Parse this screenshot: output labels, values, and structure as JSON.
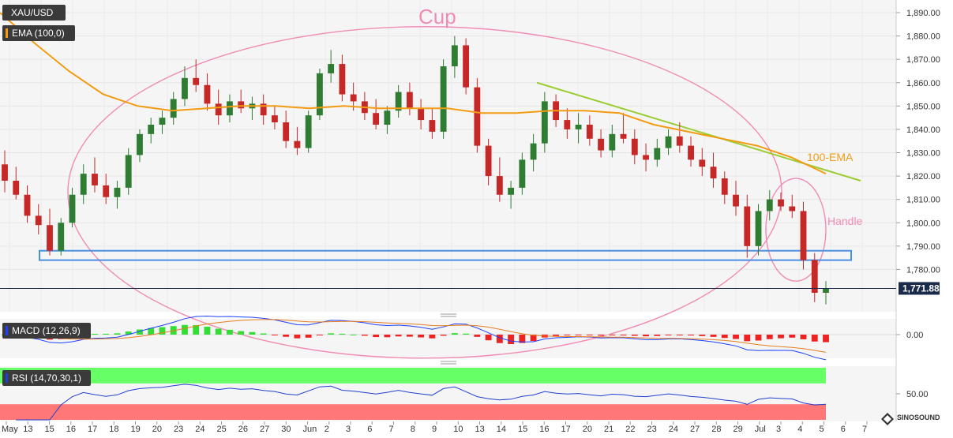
{
  "chart_data": {
    "type": "candlestick",
    "symbol": "XAU/USD",
    "indicators": {
      "ema_label": "EMA (100,0)",
      "macd_label": "MACD (12,26,9)",
      "rsi_label": "RSI (14,70,30,1)"
    },
    "price_axis": {
      "ylim": [
        1762,
        1893
      ],
      "ticks": [
        "1,890.00",
        "1,880.00",
        "1,870.00",
        "1,860.00",
        "1,850.00",
        "1,840.00",
        "1,830.00",
        "1,820.00",
        "1,810.00",
        "1,800.00",
        "1,790.00",
        "1,780.00"
      ],
      "tick_values": [
        1890,
        1880,
        1870,
        1860,
        1850,
        1840,
        1830,
        1820,
        1810,
        1800,
        1790,
        1780
      ]
    },
    "current_price": {
      "value": 1771.88,
      "label": "1,771.88"
    },
    "date_labels": [
      "May",
      "13",
      "15",
      "16",
      "17",
      "18",
      "19",
      "20",
      "23",
      "24",
      "25",
      "26",
      "27",
      "30",
      "Jun",
      "2",
      "3",
      "6",
      "7",
      "8",
      "9",
      "10",
      "13",
      "14",
      "15",
      "16",
      "17",
      "20",
      "21",
      "22",
      "23",
      "24",
      "27",
      "28",
      "29",
      "Jul",
      "3",
      "4",
      "5",
      "6",
      "7"
    ],
    "ohlc": [
      [
        1825,
        1831,
        1813,
        1818
      ],
      [
        1818,
        1824,
        1810,
        1812
      ],
      [
        1812,
        1816,
        1800,
        1803
      ],
      [
        1803,
        1808,
        1795,
        1799
      ],
      [
        1799,
        1806,
        1786,
        1788
      ],
      [
        1788,
        1802,
        1786,
        1800
      ],
      [
        1800,
        1815,
        1798,
        1812
      ],
      [
        1812,
        1825,
        1808,
        1821
      ],
      [
        1821,
        1828,
        1813,
        1816
      ],
      [
        1816,
        1821,
        1808,
        1811
      ],
      [
        1811,
        1818,
        1806,
        1815
      ],
      [
        1815,
        1832,
        1812,
        1829
      ],
      [
        1829,
        1840,
        1826,
        1838
      ],
      [
        1838,
        1845,
        1834,
        1842
      ],
      [
        1842,
        1848,
        1838,
        1845
      ],
      [
        1845,
        1856,
        1842,
        1853
      ],
      [
        1853,
        1867,
        1850,
        1862
      ],
      [
        1862,
        1870,
        1856,
        1859
      ],
      [
        1859,
        1864,
        1848,
        1851
      ],
      [
        1851,
        1857,
        1842,
        1846
      ],
      [
        1846,
        1855,
        1843,
        1852
      ],
      [
        1852,
        1857,
        1847,
        1849
      ],
      [
        1849,
        1854,
        1844,
        1851
      ],
      [
        1851,
        1855,
        1842,
        1846
      ],
      [
        1846,
        1850,
        1840,
        1843
      ],
      [
        1843,
        1848,
        1832,
        1835
      ],
      [
        1835,
        1841,
        1829,
        1832
      ],
      [
        1832,
        1848,
        1830,
        1846
      ],
      [
        1846,
        1866,
        1844,
        1864
      ],
      [
        1864,
        1874,
        1860,
        1868
      ],
      [
        1868,
        1872,
        1852,
        1855
      ],
      [
        1855,
        1860,
        1848,
        1852
      ],
      [
        1852,
        1856,
        1844,
        1847
      ],
      [
        1847,
        1853,
        1840,
        1842
      ],
      [
        1842,
        1850,
        1838,
        1848
      ],
      [
        1848,
        1859,
        1845,
        1856
      ],
      [
        1856,
        1860,
        1846,
        1849
      ],
      [
        1849,
        1853,
        1840,
        1844
      ],
      [
        1844,
        1849,
        1836,
        1839
      ],
      [
        1839,
        1870,
        1836,
        1867
      ],
      [
        1867,
        1880,
        1862,
        1876
      ],
      [
        1876,
        1879,
        1855,
        1858
      ],
      [
        1858,
        1862,
        1830,
        1833
      ],
      [
        1833,
        1836,
        1816,
        1820
      ],
      [
        1820,
        1828,
        1809,
        1812
      ],
      [
        1812,
        1818,
        1806,
        1815
      ],
      [
        1815,
        1830,
        1812,
        1827
      ],
      [
        1827,
        1838,
        1822,
        1834
      ],
      [
        1834,
        1856,
        1830,
        1852
      ],
      [
        1852,
        1855,
        1841,
        1844
      ],
      [
        1844,
        1849,
        1836,
        1840
      ],
      [
        1840,
        1847,
        1834,
        1842
      ],
      [
        1842,
        1846,
        1833,
        1836
      ],
      [
        1836,
        1840,
        1828,
        1831
      ],
      [
        1831,
        1842,
        1828,
        1838
      ],
      [
        1838,
        1847,
        1834,
        1836
      ],
      [
        1836,
        1840,
        1825,
        1829
      ],
      [
        1829,
        1834,
        1822,
        1827
      ],
      [
        1827,
        1836,
        1824,
        1832
      ],
      [
        1832,
        1840,
        1829,
        1837
      ],
      [
        1837,
        1843,
        1830,
        1833
      ],
      [
        1833,
        1837,
        1824,
        1827
      ],
      [
        1827,
        1832,
        1820,
        1824
      ],
      [
        1824,
        1830,
        1815,
        1819
      ],
      [
        1819,
        1822,
        1808,
        1812
      ],
      [
        1812,
        1818,
        1803,
        1807
      ],
      [
        1807,
        1812,
        1785,
        1790
      ],
      [
        1790,
        1808,
        1786,
        1805
      ],
      [
        1805,
        1814,
        1801,
        1810
      ],
      [
        1810,
        1813,
        1805,
        1807
      ],
      [
        1807,
        1812,
        1802,
        1805
      ],
      [
        1805,
        1809,
        1780,
        1784
      ],
      [
        1784,
        1787,
        1766,
        1770
      ],
      [
        1770,
        1775,
        1765,
        1772
      ]
    ],
    "ema100": [
      1890,
      1877,
      1865,
      1855,
      1850,
      1848,
      1849,
      1850,
      1850,
      1849,
      1850,
      1849,
      1849,
      1849,
      1847,
      1847,
      1848,
      1848,
      1847,
      1842,
      1839,
      1836,
      1833,
      1828,
      1821
    ],
    "annotations": {
      "cup_label": "Cup",
      "handle_label": "Handle",
      "ema_label": "100-EMA"
    },
    "trendline": {
      "from": [
        0,
        1860
      ],
      "to": [
        1,
        1818
      ]
    },
    "support_zone": {
      "low": 1785,
      "high": 1787
    },
    "macd_panel": {
      "ticks": [
        "0.00"
      ]
    },
    "rsi_panel": {
      "ticks": [
        "50.00"
      ]
    },
    "colors": {
      "bull": "#2e7d32",
      "bear": "#c62828",
      "ema": "#f39c12",
      "trend": "#9acd32",
      "cup": "#f08cb4",
      "zone": "#4a90e2",
      "macd": "#1e40ff",
      "signal": "#e67e22",
      "rsi": "#2040d0",
      "rsi_high": "#66ff66",
      "rsi_low": "#ff7777",
      "tag_bg": "#3a3a3a",
      "price_tag": "#1a2a4a"
    }
  }
}
